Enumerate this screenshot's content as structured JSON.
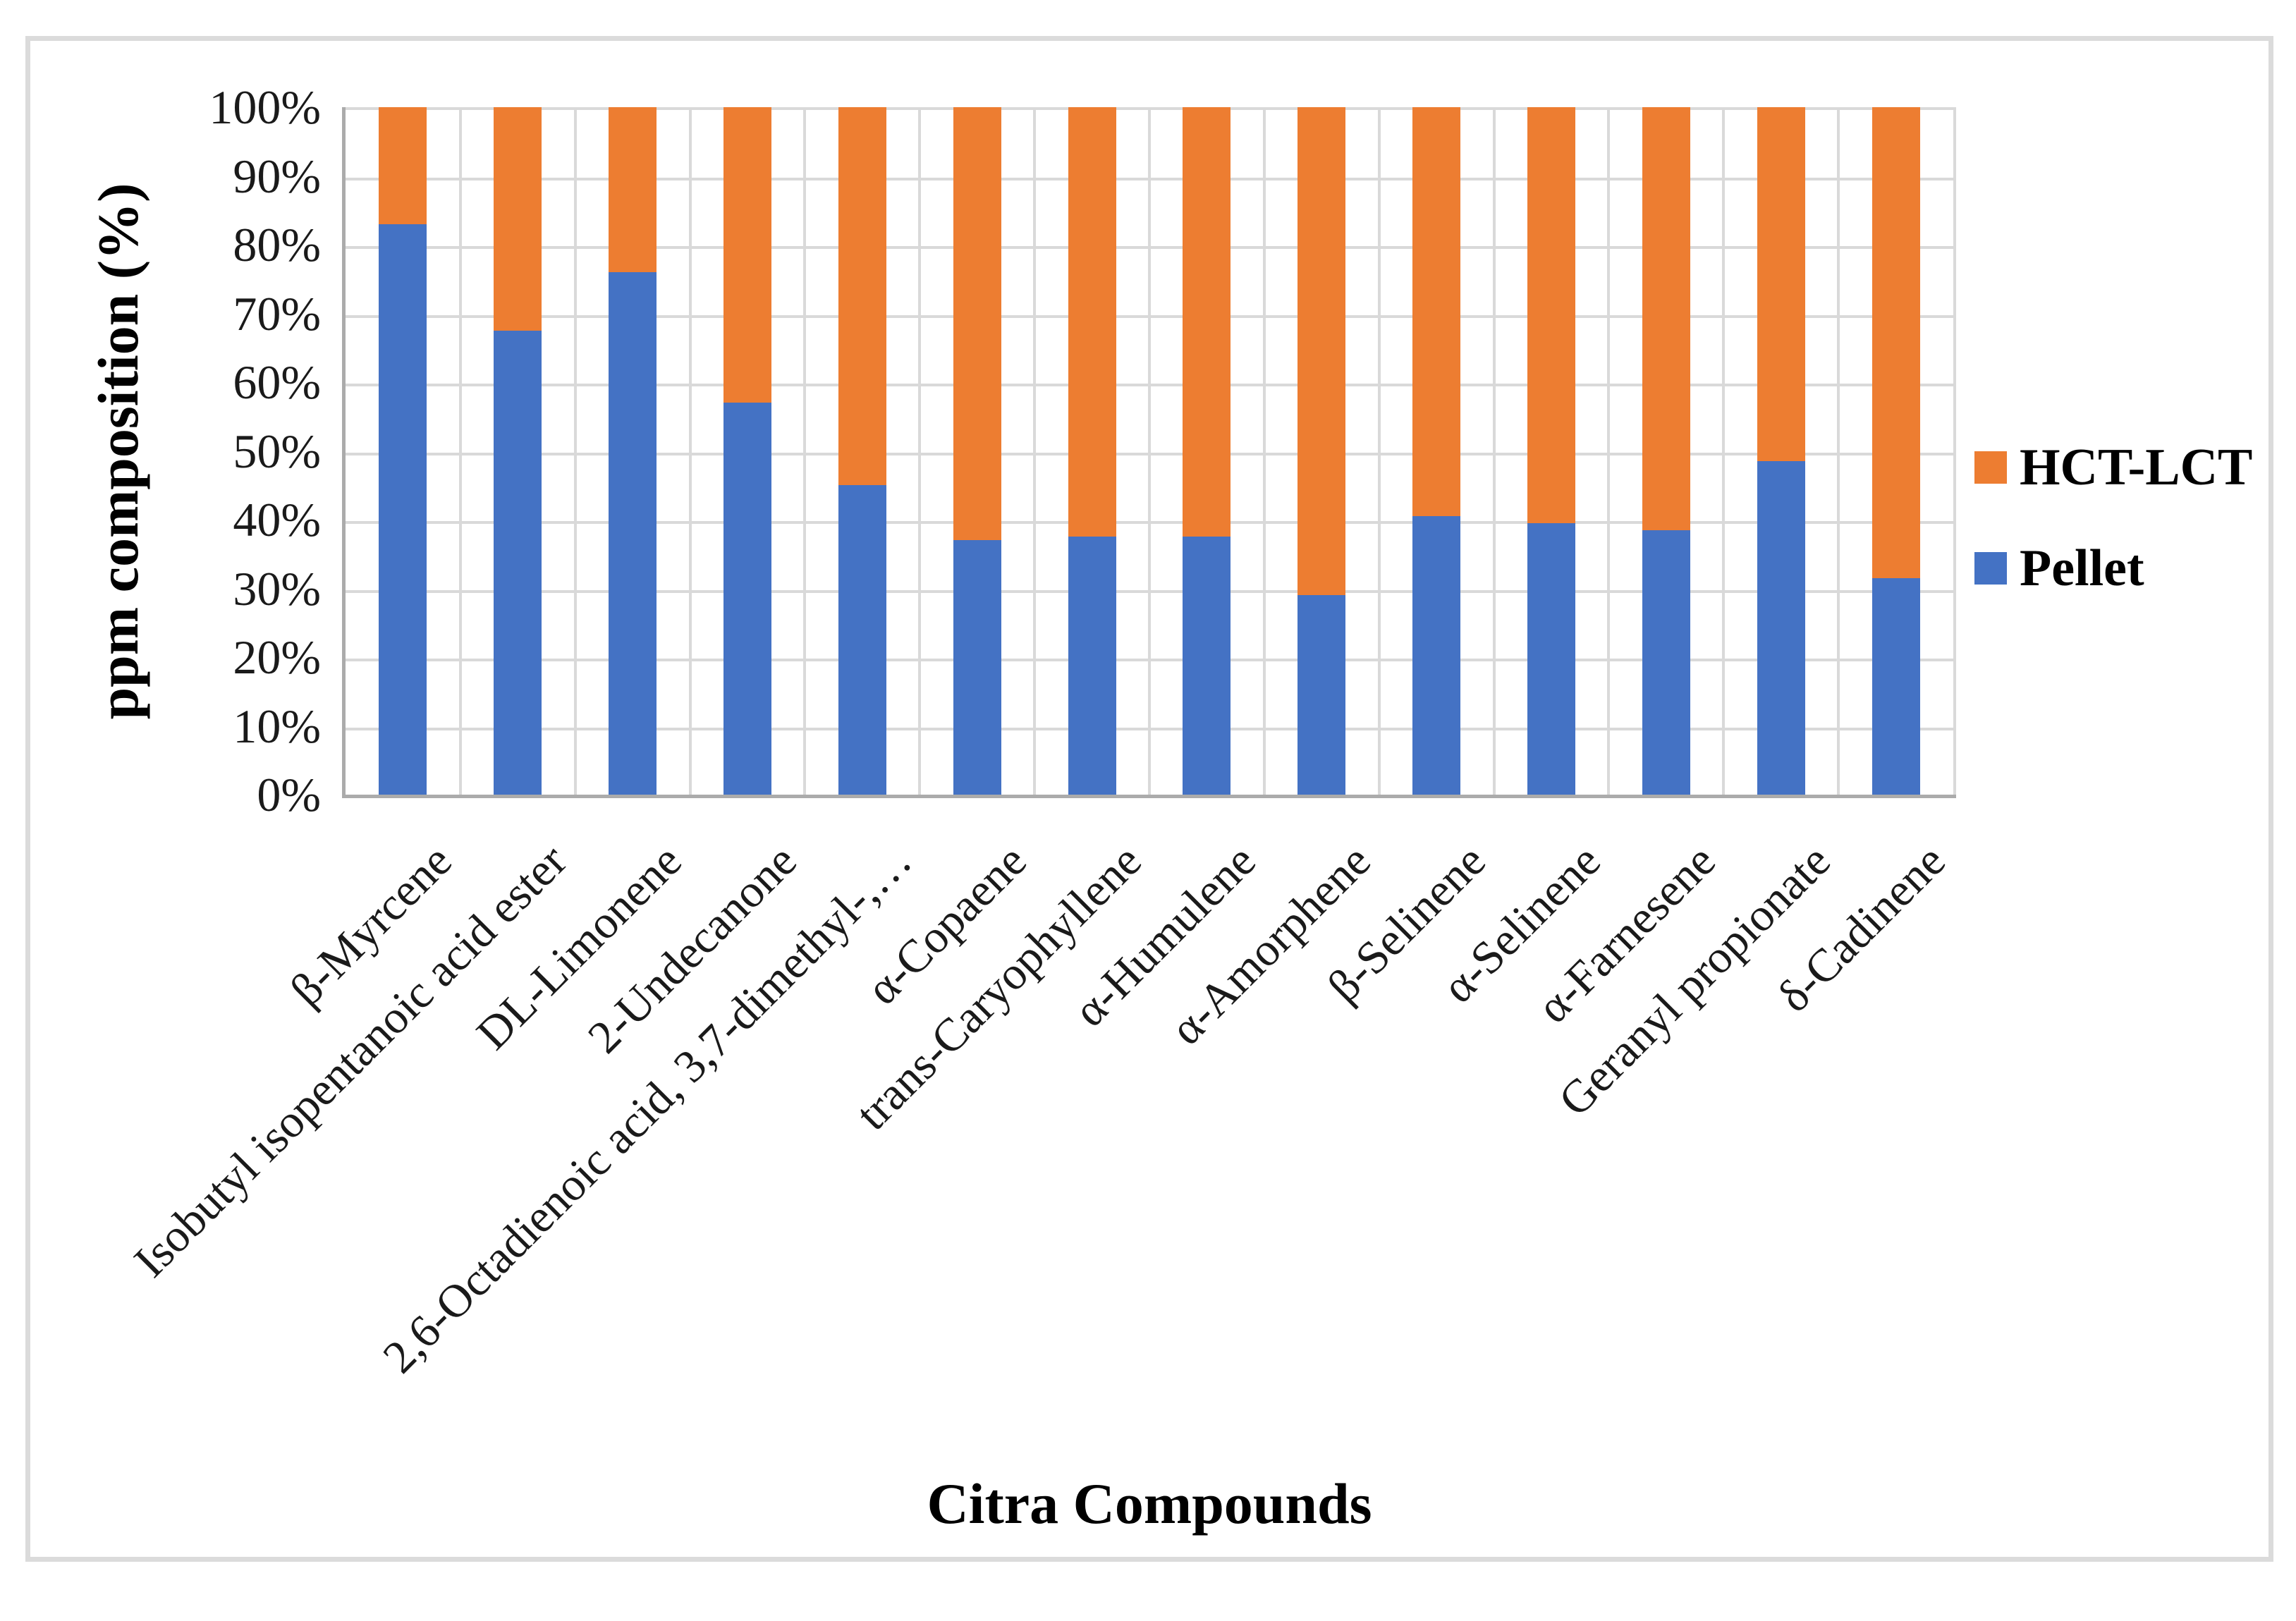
{
  "figure": {
    "y_axis_title": "ppm composition (%)",
    "x_axis_title": "Citra Compounds",
    "legend": [
      {
        "label": "HCT-LCT",
        "color": "#ED7D31"
      },
      {
        "label": "Pellet",
        "color": "#4472C4"
      }
    ],
    "border_color": "#DBDBDB",
    "gridline_color": "#D9D9D9",
    "axis_line_color": "#ABABAB"
  },
  "chart_data": {
    "type": "bar",
    "subtype": "stacked-100-percent",
    "title": "",
    "xlabel": "Citra Compounds",
    "ylabel": "ppm composition (%)",
    "ylim": [
      0,
      100
    ],
    "y_tick_step": 10,
    "y_tick_labels": [
      "0%",
      "10%",
      "20%",
      "30%",
      "40%",
      "50%",
      "60%",
      "70%",
      "80%",
      "90%",
      "100%"
    ],
    "grid": true,
    "legend_position": "right",
    "categories": [
      "β-Myrcene",
      "Isobutyl isopentanoic acid ester",
      "DL-Limonene",
      "2-Undecanone",
      "2,6-Octadienoic acid, 3,7-dimethyl-,…",
      "α-Copaene",
      "trans-Caryophyllene",
      "α-Humulene",
      "α-Amorphene",
      "β-Selinene",
      "α-Selinene",
      "α-Farnesene",
      "Geranyl propionate",
      "δ-Cadinene"
    ],
    "series": [
      {
        "name": "Pellet",
        "color": "#4472C4",
        "values": [
          83,
          67.5,
          76,
          57,
          45,
          37,
          37.5,
          37.5,
          29,
          40.5,
          39.5,
          38.5,
          48.5,
          31.5
        ]
      },
      {
        "name": "HCT-LCT",
        "color": "#ED7D31",
        "values": [
          17,
          32.5,
          24,
          43,
          55,
          63,
          62.5,
          62.5,
          71,
          59.5,
          60.5,
          61.5,
          51.5,
          68.5
        ]
      }
    ]
  }
}
